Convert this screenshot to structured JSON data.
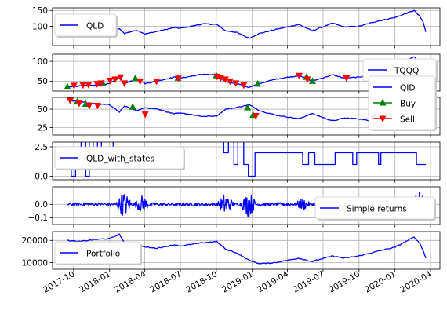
{
  "chart_data": {
    "type": "line",
    "x_range": [
      "2017-08-08",
      "2020-04-25"
    ],
    "x_ticks": [
      "2017-10",
      "2018-01",
      "2018-04",
      "2018-07",
      "2018-10",
      "2019-01",
      "2019-04",
      "2019-07",
      "2019-10",
      "2020-01",
      "2020-04"
    ],
    "grid": true,
    "colors": {
      "series": "#0000ff",
      "buy": "#008000",
      "sell": "#ff0000",
      "grid": "#b0b0b0"
    },
    "panels": [
      {
        "id": "qld",
        "legend": [
          "QLD"
        ],
        "legend_loc": "upper left",
        "ylim": [
          40,
          158
        ],
        "yticks": [
          100,
          150
        ],
        "series": [
          {
            "name": "QLD",
            "points": [
              [
                "2017-09-15",
                66
              ],
              [
                "2017-10-20",
                70
              ],
              [
                "2017-11-30",
                74
              ],
              [
                "2018-01-01",
                78
              ],
              [
                "2018-01-26",
                92
              ],
              [
                "2018-02-08",
                78
              ],
              [
                "2018-03-12",
                88
              ],
              [
                "2018-04-02",
                76
              ],
              [
                "2018-05-01",
                84
              ],
              [
                "2018-06-15",
                96
              ],
              [
                "2018-07-02",
                94
              ],
              [
                "2018-08-29",
                108
              ],
              [
                "2018-10-02",
                106
              ],
              [
                "2018-10-25",
                86
              ],
              [
                "2018-11-20",
                82
              ],
              [
                "2018-12-24",
                63
              ],
              [
                "2019-01-20",
                78
              ],
              [
                "2019-03-01",
                90
              ],
              [
                "2019-04-30",
                106
              ],
              [
                "2019-06-03",
                86
              ],
              [
                "2019-07-26",
                110
              ],
              [
                "2019-08-23",
                98
              ],
              [
                "2019-10-01",
                100
              ],
              [
                "2019-11-15",
                116
              ],
              [
                "2020-01-02",
                128
              ],
              [
                "2020-02-19",
                150
              ],
              [
                "2020-03-05",
                130
              ],
              [
                "2020-03-13",
                114
              ],
              [
                "2020-03-20",
                82
              ]
            ]
          }
        ]
      },
      {
        "id": "tqqq",
        "legend": [
          "TQQQ"
        ],
        "legend_loc": "right",
        "ylim": [
          25,
          118
        ],
        "yticks": [
          50,
          100
        ],
        "series": [
          {
            "name": "TQQQ",
            "points": [
              [
                "2017-09-15",
                36
              ],
              [
                "2017-10-20",
                38
              ],
              [
                "2017-11-30",
                40
              ],
              [
                "2018-01-01",
                44
              ],
              [
                "2018-01-26",
                58
              ],
              [
                "2018-02-08",
                45
              ],
              [
                "2018-03-12",
                55
              ],
              [
                "2018-04-02",
                44
              ],
              [
                "2018-05-01",
                50
              ],
              [
                "2018-06-15",
                60
              ],
              [
                "2018-07-02",
                58
              ],
              [
                "2018-08-29",
                68
              ],
              [
                "2018-10-02",
                65
              ],
              [
                "2018-10-25",
                48
              ],
              [
                "2018-11-20",
                45
              ],
              [
                "2018-12-24",
                34
              ],
              [
                "2019-01-20",
                44
              ],
              [
                "2019-03-01",
                55
              ],
              [
                "2019-04-30",
                64
              ],
              [
                "2019-06-03",
                50
              ],
              [
                "2019-07-26",
                66
              ],
              [
                "2019-08-23",
                58
              ],
              [
                "2019-10-01",
                60
              ],
              [
                "2019-11-15",
                72
              ],
              [
                "2020-01-02",
                84
              ],
              [
                "2020-02-19",
                112
              ],
              [
                "2020-03-05",
                92
              ],
              [
                "2020-03-13",
                70
              ],
              [
                "2020-03-20",
                48
              ]
            ]
          }
        ],
        "buy": [
          [
            "2017-09-15",
            36
          ],
          [
            "2017-12-15",
            44
          ],
          [
            "2018-03-08",
            57
          ],
          [
            "2018-06-25",
            58
          ],
          [
            "2018-10-01",
            64
          ],
          [
            "2019-01-15",
            43
          ],
          [
            "2019-05-20",
            60
          ],
          [
            "2019-06-04",
            50
          ],
          [
            "2019-10-25",
            61
          ]
        ],
        "sell": [
          [
            "2017-10-02",
            39
          ],
          [
            "2017-10-25",
            40
          ],
          [
            "2017-11-08",
            41
          ],
          [
            "2017-11-30",
            43
          ],
          [
            "2017-12-10",
            45
          ],
          [
            "2018-01-02",
            52
          ],
          [
            "2018-01-15",
            55
          ],
          [
            "2018-01-29",
            60
          ],
          [
            "2018-02-08",
            45
          ],
          [
            "2018-03-20",
            50
          ],
          [
            "2018-05-01",
            50
          ],
          [
            "2018-06-26",
            57
          ],
          [
            "2018-10-03",
            62
          ],
          [
            "2018-10-12",
            58
          ],
          [
            "2018-10-24",
            55
          ],
          [
            "2018-11-05",
            50
          ],
          [
            "2018-11-20",
            45
          ],
          [
            "2018-12-10",
            40
          ],
          [
            "2019-05-01",
            64
          ],
          [
            "2019-05-22",
            55
          ],
          [
            "2019-08-30",
            58
          ],
          [
            "2019-11-22",
            68
          ]
        ]
      },
      {
        "id": "qid",
        "legend": [
          "QID",
          "Buy",
          "Sell"
        ],
        "legend_loc": "right",
        "ylim": [
          15,
          66
        ],
        "yticks": [
          25,
          50
        ],
        "series": [
          {
            "name": "QID",
            "points": [
              [
                "2017-09-15",
                62
              ],
              [
                "2017-10-20",
                60
              ],
              [
                "2017-11-30",
                57
              ],
              [
                "2018-01-01",
                56
              ],
              [
                "2018-01-26",
                46
              ],
              [
                "2018-02-08",
                54
              ],
              [
                "2018-03-12",
                48
              ],
              [
                "2018-04-02",
                52
              ],
              [
                "2018-05-01",
                50
              ],
              [
                "2018-06-15",
                44
              ],
              [
                "2018-07-02",
                45
              ],
              [
                "2018-08-29",
                40
              ],
              [
                "2018-10-02",
                41
              ],
              [
                "2018-10-25",
                50
              ],
              [
                "2018-11-20",
                52
              ],
              [
                "2018-12-24",
                56
              ],
              [
                "2019-01-20",
                48
              ],
              [
                "2019-03-01",
                42
              ],
              [
                "2019-04-30",
                37
              ],
              [
                "2019-06-03",
                44
              ],
              [
                "2019-07-26",
                34
              ],
              [
                "2019-08-23",
                38
              ],
              [
                "2019-10-01",
                37
              ],
              [
                "2019-11-15",
                32
              ],
              [
                "2020-01-02",
                27
              ],
              [
                "2020-02-19",
                21
              ],
              [
                "2020-03-05",
                25
              ],
              [
                "2020-03-13",
                30
              ],
              [
                "2020-03-20",
                36
              ]
            ]
          }
        ],
        "buy": [
          [
            "2017-10-10",
            60
          ],
          [
            "2017-11-01",
            57
          ],
          [
            "2018-03-01",
            53
          ],
          [
            "2018-12-20",
            52
          ],
          [
            "2019-01-03",
            42
          ]
        ],
        "sell": [
          [
            "2017-09-22",
            62
          ],
          [
            "2017-10-15",
            58
          ],
          [
            "2017-11-10",
            55
          ],
          [
            "2017-12-01",
            55
          ],
          [
            "2018-04-02",
            43
          ],
          [
            "2019-01-10",
            41
          ]
        ]
      },
      {
        "id": "states",
        "legend": [
          "QLD_with_states"
        ],
        "legend_loc": "upper left",
        "ylim": [
          -0.3,
          2.9
        ],
        "yticks": [
          0.0,
          2.5
        ],
        "tick_labels": [
          "0.0",
          "2.5"
        ],
        "series": [
          {
            "name": "QLD_with_states",
            "points": [
              [
                "2017-09-15",
                2
              ],
              [
                "2017-09-25",
                0
              ],
              [
                "2017-10-06",
                2
              ],
              [
                "2017-10-20",
                3
              ],
              [
                "2017-11-01",
                0
              ],
              [
                "2017-11-10",
                3
              ],
              [
                "2017-11-20",
                1
              ],
              [
                "2017-12-01",
                3
              ],
              [
                "2017-12-11",
                2
              ],
              [
                "2018-01-10",
                3
              ],
              [
                "2018-07-01",
                3
              ],
              [
                "2018-10-01",
                3
              ],
              [
                "2018-10-20",
                2
              ],
              [
                "2018-11-01",
                3
              ],
              [
                "2018-11-15",
                1
              ],
              [
                "2018-11-25",
                3
              ],
              [
                "2018-12-10",
                1
              ],
              [
                "2018-12-22",
                0
              ],
              [
                "2019-01-08",
                2
              ],
              [
                "2019-05-01",
                2
              ],
              [
                "2019-05-10",
                1
              ],
              [
                "2019-05-25",
                2
              ],
              [
                "2019-06-10",
                1
              ],
              [
                "2019-07-15",
                1
              ],
              [
                "2019-08-01",
                2
              ],
              [
                "2019-09-15",
                1
              ],
              [
                "2019-09-25",
                2
              ],
              [
                "2019-11-20",
                1
              ],
              [
                "2019-11-26",
                2
              ],
              [
                "2020-02-15",
                2
              ],
              [
                "2020-02-25",
                1
              ],
              [
                "2020-03-20",
                1
              ]
            ]
          }
        ]
      },
      {
        "id": "returns",
        "legend": [
          "Simple returns"
        ],
        "legend_loc": "lower right",
        "ylim": [
          -0.15,
          0.13
        ],
        "yticks": [
          -0.1,
          0.0
        ],
        "tick_labels": [
          "−0.1",
          "0.0"
        ],
        "series": [
          {
            "name": "Simple returns",
            "noise": {
              "from": "2017-09-15",
              "to": "2020-03-20",
              "base_amplitude": 0.012,
              "spikes": [
                [
                  "2018-02-07",
                  0.1
                ],
                [
                  "2018-03-25",
                  0.07
                ],
                [
                  "2018-10-25",
                  0.09
                ],
                [
                  "2018-12-22",
                  0.1
                ],
                [
                  "2019-05-10",
                  0.05
                ],
                [
                  "2019-08-10",
                  0.05
                ],
                [
                  "2020-03-01",
                  0.12
                ]
              ]
            }
          }
        ]
      },
      {
        "id": "portfolio",
        "legend": [
          "Portfolio"
        ],
        "legend_loc": "lower left",
        "ylim": [
          7000,
          24000
        ],
        "yticks": [
          10000,
          20000
        ],
        "series": [
          {
            "name": "Portfolio",
            "points": [
              [
                "2017-09-15",
                20000
              ],
              [
                "2017-10-15",
                19500
              ],
              [
                "2017-11-30",
                20500
              ],
              [
                "2018-01-01",
                20800
              ],
              [
                "2018-01-26",
                22800
              ],
              [
                "2018-02-08",
                19000
              ],
              [
                "2018-03-12",
                18500
              ],
              [
                "2018-04-02",
                17000
              ],
              [
                "2018-05-01",
                16500
              ],
              [
                "2018-06-15",
                18000
              ],
              [
                "2018-07-02",
                17500
              ],
              [
                "2018-08-29",
                19000
              ],
              [
                "2018-10-02",
                19500
              ],
              [
                "2018-10-25",
                16000
              ],
              [
                "2018-11-20",
                14500
              ],
              [
                "2018-12-24",
                11000
              ],
              [
                "2019-01-20",
                9500
              ],
              [
                "2019-03-01",
                10000
              ],
              [
                "2019-04-30",
                12000
              ],
              [
                "2019-06-03",
                10500
              ],
              [
                "2019-07-26",
                13000
              ],
              [
                "2019-08-23",
                12000
              ],
              [
                "2019-10-01",
                13000
              ],
              [
                "2019-11-15",
                15000
              ],
              [
                "2020-01-02",
                17000
              ],
              [
                "2020-02-19",
                21500
              ],
              [
                "2020-03-05",
                18500
              ],
              [
                "2020-03-13",
                15500
              ],
              [
                "2020-03-20",
                12000
              ]
            ]
          }
        ]
      }
    ]
  }
}
